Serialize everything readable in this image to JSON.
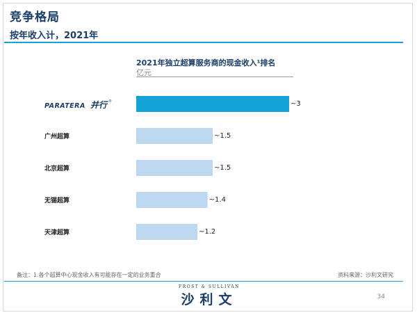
{
  "header": {
    "title": "竞争格局",
    "subtitle": "按年收入计，2021年"
  },
  "chart_data": {
    "type": "bar",
    "orientation": "horizontal",
    "title": "2021年独立超算服务商的现金收入¹排名",
    "unit": "亿元",
    "categories": [
      "PARATERA 并行",
      "广州超算",
      "北京超算",
      "无锡超算",
      "天津超算"
    ],
    "values": [
      3,
      1.5,
      1.5,
      1.4,
      1.2
    ],
    "value_labels": [
      "~3",
      "~1.5",
      "~1.5",
      "~1.4",
      "~1.2"
    ],
    "xlim": [
      0,
      3
    ],
    "grid": false,
    "colors": {
      "highlight": "#14a1d6",
      "default": "#bcd7ef"
    }
  },
  "logo": {
    "latin": "PARATERA",
    "cn": "并行",
    "reg": "®"
  },
  "footer": {
    "note": "备注：1.各个超算中心现金收入有可能存在一定的业务重合",
    "source": "资料来源：沙利文研究",
    "brand_en": "FROST & SULLIVAN",
    "brand_cn": "沙利文",
    "page_number": "34"
  }
}
